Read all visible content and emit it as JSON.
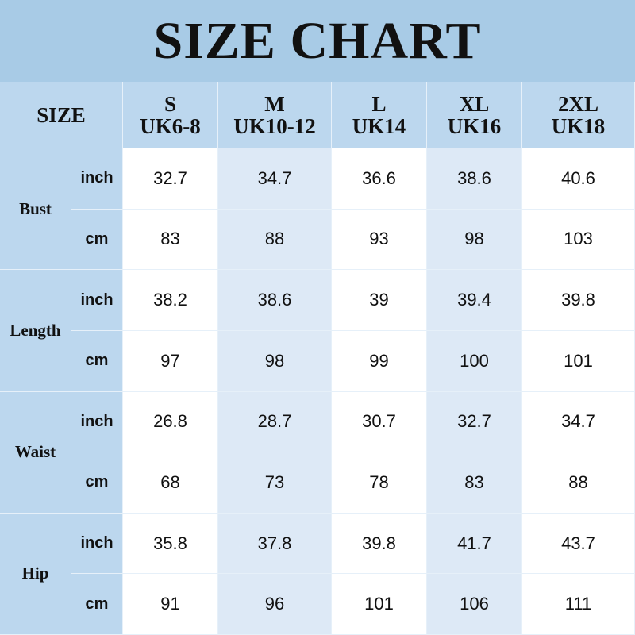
{
  "title": "SIZE CHART",
  "header_label": "SIZE",
  "sizes": [
    {
      "name": "S",
      "uk": "UK6-8"
    },
    {
      "name": "M",
      "uk": "UK10-12"
    },
    {
      "name": "L",
      "uk": "UK14"
    },
    {
      "name": "XL",
      "uk": "UK16"
    },
    {
      "name": "2XL",
      "uk": "UK18"
    }
  ],
  "measurements": [
    {
      "name": "Bust",
      "rows": [
        {
          "unit": "inch",
          "values": [
            "32.7",
            "34.7",
            "36.6",
            "38.6",
            "40.6"
          ]
        },
        {
          "unit": "cm",
          "values": [
            "83",
            "88",
            "93",
            "98",
            "103"
          ]
        }
      ]
    },
    {
      "name": "Length",
      "rows": [
        {
          "unit": "inch",
          "values": [
            "38.2",
            "38.6",
            "39",
            "39.4",
            "39.8"
          ]
        },
        {
          "unit": "cm",
          "values": [
            "97",
            "98",
            "99",
            "100",
            "101"
          ]
        }
      ]
    },
    {
      "name": "Waist",
      "rows": [
        {
          "unit": "inch",
          "values": [
            "26.8",
            "28.7",
            "30.7",
            "32.7",
            "34.7"
          ]
        },
        {
          "unit": "cm",
          "values": [
            "68",
            "73",
            "78",
            "83",
            "88"
          ]
        }
      ]
    },
    {
      "name": "Hip",
      "rows": [
        {
          "unit": "inch",
          "values": [
            "35.8",
            "37.8",
            "39.8",
            "41.7",
            "43.7"
          ]
        },
        {
          "unit": "cm",
          "values": [
            "91",
            "96",
            "101",
            "106",
            "111"
          ]
        }
      ]
    }
  ],
  "colors": {
    "title_bg": "#a8cbe6",
    "header_bg": "#bcd7ee",
    "alt_column_bg": "#dde9f6"
  }
}
